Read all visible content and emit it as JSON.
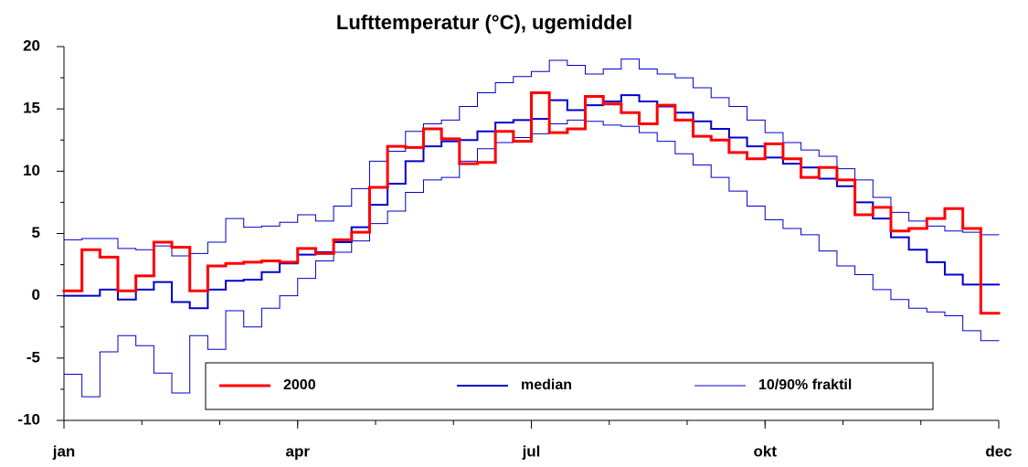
{
  "chart_data": {
    "type": "step",
    "title": "Lufttemperatur (°C), ugemiddel",
    "xlim": [
      0,
      12
    ],
    "xticks": [
      {
        "value": 0,
        "label": "jan"
      },
      {
        "value": 3,
        "label": "apr"
      },
      {
        "value": 6,
        "label": "jul"
      },
      {
        "value": 9,
        "label": "okt"
      },
      {
        "value": 12,
        "label": "dec"
      }
    ],
    "xminorticks": [
      0,
      1,
      2,
      3,
      4,
      5,
      6,
      7,
      8,
      9,
      10,
      11,
      12
    ],
    "ylim": [
      -10,
      20
    ],
    "yticks": [
      -10,
      -5,
      0,
      5,
      10,
      15,
      20
    ],
    "yminorticks": [
      -7.5,
      -2.5,
      2.5,
      7.5,
      12.5,
      17.5
    ],
    "grid": false,
    "series": [
      {
        "name": "2000",
        "color": "#ff0000",
        "width": 3,
        "values": [
          0.4,
          3.7,
          3.1,
          0.4,
          1.6,
          4.3,
          3.9,
          0.4,
          2.4,
          2.6,
          2.7,
          2.8,
          2.7,
          3.8,
          3.4,
          4.5,
          5.1,
          8.7,
          12.0,
          11.9,
          13.4,
          12.6,
          10.6,
          10.7,
          13.2,
          12.4,
          16.3,
          13.1,
          13.4,
          16.0,
          15.4,
          14.7,
          13.8,
          15.3,
          14.1,
          12.8,
          12.5,
          11.5,
          11.0,
          12.2,
          11.0,
          9.5,
          10.3,
          9.3,
          6.5,
          7.1,
          5.2,
          5.4,
          6.2,
          7.0,
          5.4,
          -1.4
        ]
      },
      {
        "name": "median",
        "color": "#0000cc",
        "width": 2,
        "values": [
          0.0,
          0.0,
          0.5,
          -0.3,
          0.5,
          1.1,
          -0.5,
          -1.0,
          0.5,
          1.2,
          1.3,
          1.9,
          2.6,
          3.3,
          3.5,
          4.3,
          5.5,
          7.3,
          9.0,
          10.8,
          12.0,
          12.4,
          12.5,
          13.2,
          13.9,
          14.1,
          14.2,
          15.7,
          14.9,
          15.3,
          15.6,
          16.1,
          15.6,
          15.2,
          14.7,
          14.0,
          13.4,
          12.7,
          12.0,
          11.1,
          10.6,
          10.3,
          9.4,
          8.8,
          7.5,
          6.2,
          4.7,
          3.7,
          2.7,
          1.7,
          0.9,
          0.9
        ]
      },
      {
        "name": "10/90% fraktil",
        "color": "#0000cc",
        "width": 1,
        "values": [
          4.5,
          4.6,
          4.6,
          3.8,
          3.7,
          4.0,
          3.2,
          3.4,
          4.3,
          6.2,
          5.5,
          5.6,
          5.9,
          6.5,
          6.0,
          7.2,
          8.6,
          10.8,
          11.6,
          13.2,
          13.8,
          14.1,
          15.2,
          16.3,
          17.1,
          17.6,
          18.0,
          18.9,
          18.5,
          17.8,
          18.2,
          19.0,
          18.2,
          17.8,
          17.5,
          16.7,
          15.9,
          15.2,
          14.1,
          13.1,
          12.3,
          11.7,
          11.2,
          10.2,
          9.3,
          7.9,
          6.7,
          6.0,
          5.6,
          5.2,
          5.1,
          4.9
        ]
      },
      {
        "color": "#0000cc",
        "width": 1,
        "values": [
          -6.3,
          -8.1,
          -4.5,
          -3.2,
          -4.0,
          -6.2,
          -7.8,
          -3.2,
          -4.3,
          -1.2,
          -2.5,
          -1.0,
          0.0,
          1.4,
          2.8,
          3.5,
          4.4,
          5.8,
          6.8,
          8.3,
          9.3,
          9.5,
          10.8,
          11.8,
          12.3,
          12.7,
          13.0,
          13.8,
          14.1,
          14.0,
          13.7,
          13.6,
          13.1,
          12.4,
          11.4,
          10.5,
          9.5,
          8.4,
          7.2,
          6.1,
          5.4,
          4.9,
          3.6,
          2.4,
          1.7,
          0.5,
          -0.3,
          -1.0,
          -1.3,
          -1.6,
          -2.8,
          -3.6
        ]
      }
    ]
  }
}
